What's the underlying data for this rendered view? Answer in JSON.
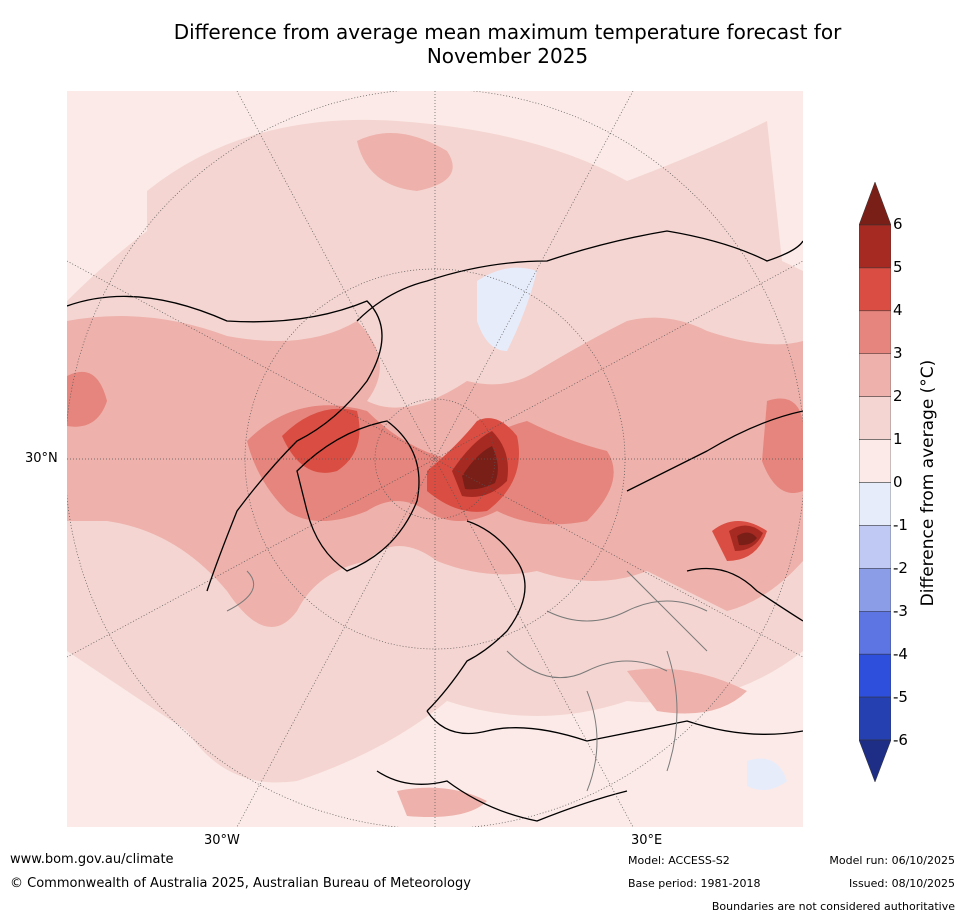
{
  "title": {
    "line1": "Difference from average mean maximum temperature forecast for",
    "line2": "November 2025"
  },
  "map": {
    "projection": "North polar stereographic",
    "lat_label": "30°N",
    "lon_labels": [
      "30°W",
      "30°E"
    ],
    "colors": {
      "ocean_background": "#fbeae7",
      "coast": "#000000",
      "borders": "#7a7a7a",
      "graticule": "#555555"
    }
  },
  "colorbar": {
    "title": "Difference from average (°C)",
    "ticks": [
      "6",
      "5",
      "4",
      "3",
      "2",
      "1",
      "0",
      "-1",
      "-2",
      "-3",
      "-4",
      "-5",
      "-6"
    ],
    "bins": [
      {
        "range": "> 6",
        "color": "#7a1f18"
      },
      {
        "range": "5 to 6",
        "color": "#a72a22"
      },
      {
        "range": "4 to 5",
        "color": "#d94d42"
      },
      {
        "range": "3 to 4",
        "color": "#e5857d"
      },
      {
        "range": "2 to 3",
        "color": "#eeb1ab"
      },
      {
        "range": "1 to 2",
        "color": "#f4d5d1"
      },
      {
        "range": "0 to 1",
        "color": "#fbeae7"
      },
      {
        "range": "-1 to 0",
        "color": "#e7ecfb"
      },
      {
        "range": "-2 to -1",
        "color": "#bfc9f3"
      },
      {
        "range": "-3 to -2",
        "color": "#8c9de8"
      },
      {
        "range": "-4 to -3",
        "color": "#5d75e2"
      },
      {
        "range": "-5 to -4",
        "color": "#2e4fdc"
      },
      {
        "range": "-6 to -5",
        "color": "#2540b1"
      },
      {
        "range": "< -6",
        "color": "#1e2d85"
      }
    ]
  },
  "footer": {
    "url": "www.bom.gov.au/climate",
    "copyright": "© Commonwealth of Australia 2025, Australian Bureau of Meteorology",
    "model": "Model: ACCESS-S2",
    "base_period": "Base period: 1981-2018",
    "model_run": "Model run: 06/10/2025",
    "issued": "Issued: 08/10/2025",
    "disclaimer": "Boundaries are not considered authoritative"
  }
}
